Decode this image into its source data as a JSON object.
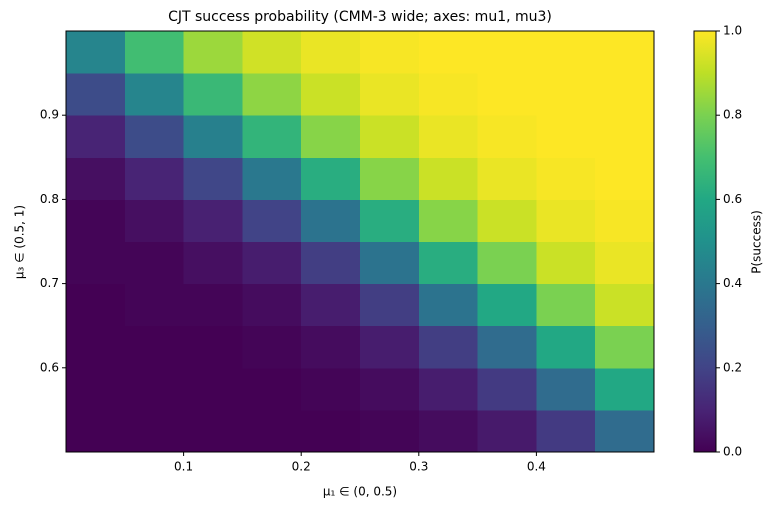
{
  "chart_data": {
    "type": "heatmap",
    "title": "CJT success probability (CMM-3 wide; axes: mu1, mu3)",
    "x_label": "μ₁ ∈ (0, 0.5)",
    "y_label": "μ₃ ∈ (0.5, 1)",
    "colorbar_label": "P(success)",
    "colormap": "viridis",
    "x": [
      0.025,
      0.075,
      0.125,
      0.175,
      0.225,
      0.275,
      0.325,
      0.375,
      0.425,
      0.475
    ],
    "y": [
      0.525,
      0.575,
      0.625,
      0.675,
      0.725,
      0.775,
      0.825,
      0.875,
      0.925,
      0.975
    ],
    "values": [
      [
        0,
        0,
        0,
        0,
        0,
        0.01,
        0.03,
        0.07,
        0.17,
        0.35
      ],
      [
        0,
        0,
        0,
        0,
        0.01,
        0.03,
        0.08,
        0.17,
        0.35,
        0.6
      ],
      [
        0,
        0,
        0,
        0.01,
        0.03,
        0.08,
        0.18,
        0.35,
        0.6,
        0.8
      ],
      [
        0,
        0.01,
        0.01,
        0.03,
        0.08,
        0.18,
        0.38,
        0.6,
        0.8,
        0.92
      ],
      [
        0.01,
        0.01,
        0.04,
        0.08,
        0.18,
        0.38,
        0.62,
        0.8,
        0.92,
        0.97
      ],
      [
        0.01,
        0.04,
        0.09,
        0.2,
        0.38,
        0.62,
        0.82,
        0.92,
        0.97,
        0.99
      ],
      [
        0.04,
        0.1,
        0.21,
        0.4,
        0.62,
        0.82,
        0.92,
        0.97,
        0.99,
        1
      ],
      [
        0.1,
        0.23,
        0.43,
        0.65,
        0.82,
        0.92,
        0.97,
        0.99,
        1,
        1
      ],
      [
        0.23,
        0.45,
        0.67,
        0.83,
        0.92,
        0.97,
        0.99,
        1,
        1,
        1
      ],
      [
        0.45,
        0.69,
        0.85,
        0.93,
        0.97,
        0.99,
        1,
        1,
        1,
        1
      ]
    ],
    "xlim": [
      0,
      0.5
    ],
    "ylim": [
      0.5,
      1
    ],
    "xticks": [
      0.1,
      0.2,
      0.3,
      0.4
    ],
    "yticks": [
      0.6,
      0.7,
      0.8,
      0.9
    ],
    "clim": [
      0,
      1
    ],
    "cticks": [
      {
        "value": 0,
        "label": "0.0"
      },
      {
        "value": 0.2,
        "label": "0.2"
      },
      {
        "value": 0.4,
        "label": "0.4"
      },
      {
        "value": 0.6,
        "label": "0.6"
      },
      {
        "value": 0.8,
        "label": "0.8"
      },
      {
        "value": 1,
        "label": "1.0"
      }
    ],
    "grid": false
  }
}
